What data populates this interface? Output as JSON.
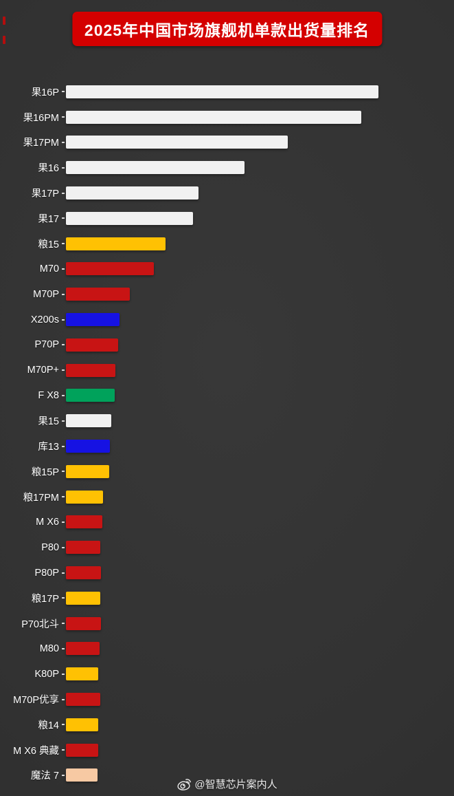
{
  "page": {
    "title": "2025年中国市场旗舰机单款出货量排名",
    "watermark": "@智慧芯片案内人",
    "background_color": "#323232",
    "title_banner_color": "#d40000",
    "title_text_color": "#ffffff"
  },
  "colors": {
    "white": "#f1f1f1",
    "yellow": "#ffc103",
    "red": "#c81414",
    "blue": "#1612e3",
    "green": "#00a25b",
    "peach": "#f7c9a3"
  },
  "chart_data": {
    "type": "bar",
    "orientation": "horizontal",
    "title": "2025年中国市场旗舰机单款出货量排名",
    "xlabel": "",
    "ylabel": "",
    "legend": "none",
    "grid": false,
    "value_note": "no numeric axis or data labels shown in image; values are relative bar lengths estimated from pixels",
    "xlim": [
      0,
      460
    ],
    "bars": [
      {
        "label": "果16P",
        "value": 455,
        "color": "white"
      },
      {
        "label": "果16PM",
        "value": 430,
        "color": "white"
      },
      {
        "label": "果17PM",
        "value": 323,
        "color": "white"
      },
      {
        "label": "果16",
        "value": 260,
        "color": "white"
      },
      {
        "label": "果17P",
        "value": 193,
        "color": "white"
      },
      {
        "label": "果17",
        "value": 185,
        "color": "white"
      },
      {
        "label": "粮15",
        "value": 145,
        "color": "yellow"
      },
      {
        "label": "M70",
        "value": 128,
        "color": "red"
      },
      {
        "label": "M70P",
        "value": 93,
        "color": "red"
      },
      {
        "label": "X200s",
        "value": 78,
        "color": "blue"
      },
      {
        "label": "P70P",
        "value": 76,
        "color": "red"
      },
      {
        "label": "M70P+",
        "value": 72,
        "color": "red"
      },
      {
        "label": "F X8",
        "value": 71,
        "color": "green"
      },
      {
        "label": "果15",
        "value": 66,
        "color": "white"
      },
      {
        "label": "库13",
        "value": 64,
        "color": "blue"
      },
      {
        "label": "粮15P",
        "value": 63,
        "color": "yellow"
      },
      {
        "label": "粮17PM",
        "value": 54,
        "color": "yellow"
      },
      {
        "label": "M X6",
        "value": 53,
        "color": "red"
      },
      {
        "label": "P80",
        "value": 50,
        "color": "red"
      },
      {
        "label": "P80P",
        "value": 51,
        "color": "red"
      },
      {
        "label": "粮17P",
        "value": 50,
        "color": "yellow"
      },
      {
        "label": "P70北斗",
        "value": 51,
        "color": "red"
      },
      {
        "label": "M80",
        "value": 49,
        "color": "red"
      },
      {
        "label": "K80P",
        "value": 47,
        "color": "yellow"
      },
      {
        "label": "M70P优享",
        "value": 50,
        "color": "red"
      },
      {
        "label": "粮14",
        "value": 47,
        "color": "yellow"
      },
      {
        "label": "M X6 典藏",
        "value": 47,
        "color": "red"
      },
      {
        "label": "魔法 7",
        "value": 46,
        "color": "peach"
      }
    ]
  }
}
